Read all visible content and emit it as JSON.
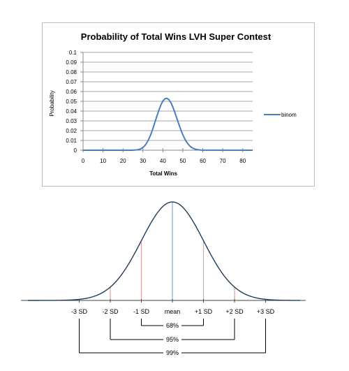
{
  "chart_data": [
    {
      "type": "line",
      "title": "Probability of Total Wins LVH Super Contest",
      "xlabel": "Total Wins",
      "ylabel": "Probability",
      "xlim": [
        0,
        85
      ],
      "ylim": [
        0,
        0.1
      ],
      "x_ticks": [
        "0",
        "10",
        "20",
        "30",
        "40",
        "50",
        "60",
        "70",
        "80"
      ],
      "y_ticks": [
        "0",
        "0.01",
        "0.02",
        "0.03",
        "0.04",
        "0.05",
        "0.06",
        "0.07",
        "0.08",
        "0.09",
        "0.1"
      ],
      "grid": true,
      "legend_position": "right",
      "series_color": "#4a7ebb",
      "series": [
        {
          "name": "binom",
          "x": [
            25,
            26,
            27,
            28,
            29,
            30,
            31,
            32,
            33,
            34,
            35,
            36,
            37,
            38,
            39,
            40,
            41,
            42,
            43,
            44,
            45,
            46,
            47,
            48,
            49,
            50,
            51,
            52,
            53,
            54,
            55,
            56,
            57,
            58,
            59,
            60
          ],
          "values": [
            0.0001,
            0.0002,
            0.0004,
            0.0008,
            0.0015,
            0.0028,
            0.0048,
            0.0077,
            0.0116,
            0.0165,
            0.0222,
            0.0285,
            0.0349,
            0.041,
            0.0463,
            0.0503,
            0.0526,
            0.0531,
            0.0517,
            0.0486,
            0.0441,
            0.0386,
            0.0326,
            0.0266,
            0.0209,
            0.0158,
            0.0115,
            0.008,
            0.0054,
            0.0034,
            0.0021,
            0.0012,
            0.0007,
            0.0004,
            0.0002,
            0.0001
          ]
        }
      ]
    },
    {
      "type": "area",
      "title": "",
      "axis_labels": [
        "-3 SD",
        "-2 SD",
        "-1 SD",
        "mean",
        "+1 SD",
        "+2 SD",
        "+3 SD"
      ],
      "bracket_labels": [
        "68%",
        "95%",
        "99%"
      ],
      "curve_color": "#1f3b5a",
      "mean_line_color": "#9bb7d4",
      "sd_line_color": "#e0a0a0"
    }
  ]
}
